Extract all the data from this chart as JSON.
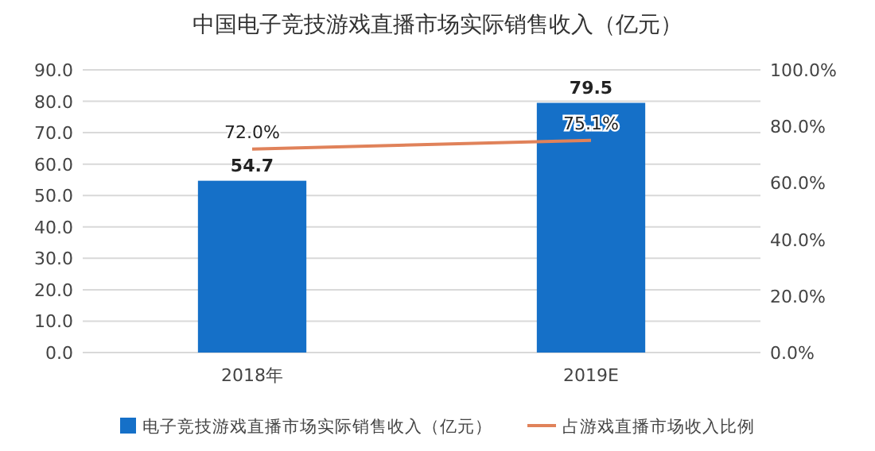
{
  "chart_data": {
    "type": "bar",
    "title": "中国电子竞技游戏直播市场实际销售收入（亿元）",
    "categories": [
      "2018年",
      "2019E"
    ],
    "series": [
      {
        "name": "电子竞技游戏直播市场实际销售收入（亿元）",
        "color": "#1570c8",
        "values": [
          54.7,
          79.5
        ],
        "value_labels": [
          "54.7",
          "79.5"
        ]
      },
      {
        "name": "占游戏直播市场收入比例",
        "type": "line",
        "axis": "y2",
        "color": "#e0825a",
        "values": [
          72.0,
          75.1
        ],
        "value_labels": [
          "72.0%",
          "75.1%"
        ]
      }
    ],
    "ylim": [
      0,
      90
    ],
    "yticks": [
      {
        "value": 0,
        "label": "0.0"
      },
      {
        "value": 10,
        "label": "10.0"
      },
      {
        "value": 20,
        "label": "20.0"
      },
      {
        "value": 30,
        "label": "30.0"
      },
      {
        "value": 40,
        "label": "40.0"
      },
      {
        "value": 50,
        "label": "50.0"
      },
      {
        "value": 60,
        "label": "60.0"
      },
      {
        "value": 70,
        "label": "70.0"
      },
      {
        "value": 80,
        "label": "80.0"
      },
      {
        "value": 90,
        "label": "90.0"
      }
    ],
    "y2lim": [
      0,
      100
    ],
    "y2ticks": [
      {
        "value": 0,
        "label": "0.0%"
      },
      {
        "value": 20,
        "label": "20.0%"
      },
      {
        "value": 40,
        "label": "40.0%"
      },
      {
        "value": 60,
        "label": "60.0%"
      },
      {
        "value": 80,
        "label": "80.0%"
      },
      {
        "value": 100,
        "label": "100.0%"
      }
    ],
    "grid": "y",
    "legend": "bottom",
    "marker": "none"
  }
}
